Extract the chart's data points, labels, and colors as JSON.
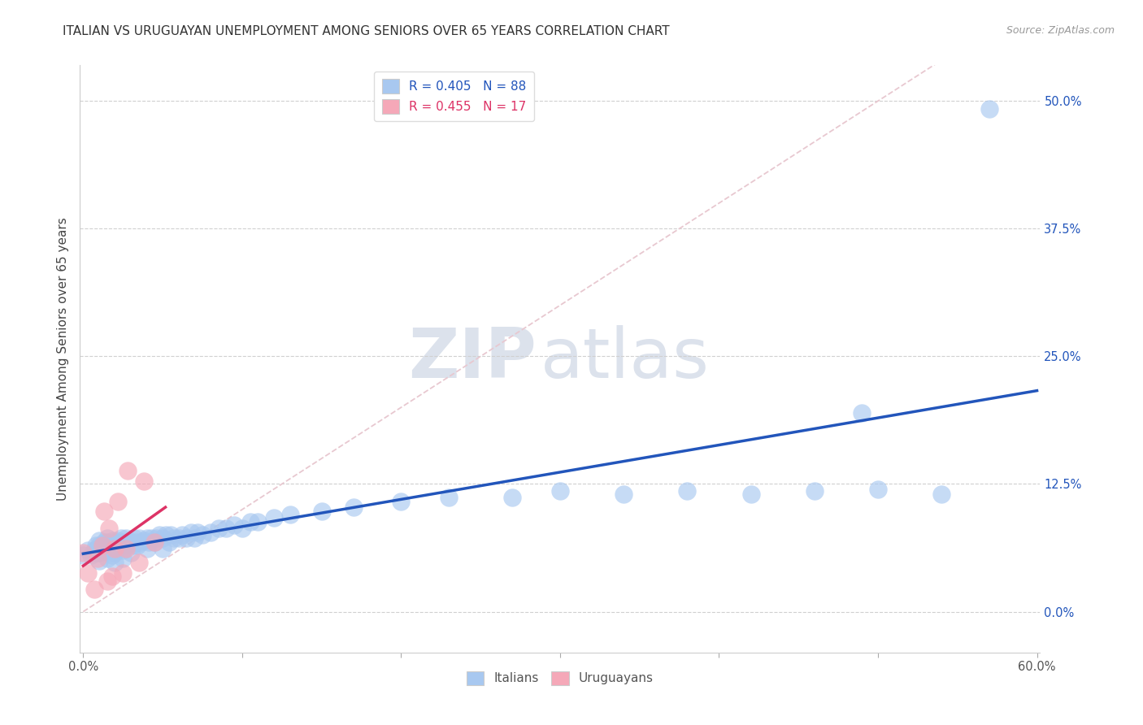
{
  "title": "ITALIAN VS URUGUAYAN UNEMPLOYMENT AMONG SENIORS OVER 65 YEARS CORRELATION CHART",
  "source": "Source: ZipAtlas.com",
  "ylabel": "Unemployment Among Seniors over 65 years",
  "xlim": [
    -0.002,
    0.602
  ],
  "ylim": [
    -0.04,
    0.535
  ],
  "xticks": [
    0.0,
    0.1,
    0.2,
    0.3,
    0.4,
    0.5,
    0.6
  ],
  "xticklabels": [
    "0.0%",
    "",
    "",
    "",
    "",
    "",
    "60.0%"
  ],
  "yticks": [
    0.0,
    0.125,
    0.25,
    0.375,
    0.5
  ],
  "yticklabels": [
    "0.0%",
    "12.5%",
    "25.0%",
    "37.5%",
    "50.0%"
  ],
  "italian_R": "0.405",
  "italian_N": "88",
  "uruguayan_R": "0.455",
  "uruguayan_N": "17",
  "italian_color": "#a8c8f0",
  "italian_line_color": "#2255bb",
  "uruguayan_color": "#f5a8b8",
  "uruguayan_line_color": "#dd3366",
  "ref_line_color": "#e8c8d0",
  "background_color": "#ffffff",
  "watermark_color": "#dce2ec",
  "italian_x": [
    0.0,
    0.003,
    0.005,
    0.007,
    0.008,
    0.008,
    0.009,
    0.01,
    0.01,
    0.01,
    0.01,
    0.012,
    0.013,
    0.014,
    0.015,
    0.015,
    0.015,
    0.015,
    0.016,
    0.017,
    0.018,
    0.018,
    0.019,
    0.02,
    0.02,
    0.02,
    0.021,
    0.022,
    0.023,
    0.024,
    0.025,
    0.025,
    0.025,
    0.026,
    0.027,
    0.028,
    0.03,
    0.03,
    0.031,
    0.032,
    0.033,
    0.034,
    0.035,
    0.036,
    0.038,
    0.04,
    0.04,
    0.041,
    0.043,
    0.045,
    0.046,
    0.048,
    0.05,
    0.05,
    0.052,
    0.054,
    0.055,
    0.057,
    0.06,
    0.062,
    0.065,
    0.068,
    0.07,
    0.072,
    0.075,
    0.08,
    0.085,
    0.09,
    0.095,
    0.1,
    0.105,
    0.11,
    0.12,
    0.13,
    0.15,
    0.17,
    0.2,
    0.23,
    0.27,
    0.3,
    0.34,
    0.38,
    0.42,
    0.46,
    0.5,
    0.54,
    0.49,
    0.57
  ],
  "italian_y": [
    0.055,
    0.06,
    0.055,
    0.06,
    0.065,
    0.058,
    0.062,
    0.05,
    0.058,
    0.065,
    0.07,
    0.062,
    0.068,
    0.06,
    0.052,
    0.06,
    0.068,
    0.072,
    0.065,
    0.06,
    0.055,
    0.065,
    0.07,
    0.048,
    0.058,
    0.068,
    0.062,
    0.07,
    0.065,
    0.072,
    0.052,
    0.06,
    0.068,
    0.065,
    0.072,
    0.068,
    0.058,
    0.068,
    0.065,
    0.072,
    0.068,
    0.065,
    0.072,
    0.068,
    0.07,
    0.062,
    0.072,
    0.068,
    0.072,
    0.068,
    0.072,
    0.075,
    0.062,
    0.072,
    0.075,
    0.068,
    0.075,
    0.072,
    0.072,
    0.075,
    0.072,
    0.078,
    0.072,
    0.078,
    0.075,
    0.078,
    0.082,
    0.082,
    0.085,
    0.082,
    0.088,
    0.088,
    0.092,
    0.095,
    0.098,
    0.102,
    0.108,
    0.112,
    0.112,
    0.118,
    0.115,
    0.118,
    0.115,
    0.118,
    0.12,
    0.115,
    0.195,
    0.492
  ],
  "uruguayan_x": [
    0.0,
    0.003,
    0.007,
    0.009,
    0.012,
    0.013,
    0.015,
    0.016,
    0.018,
    0.02,
    0.022,
    0.025,
    0.027,
    0.028,
    0.035,
    0.038,
    0.045
  ],
  "uruguayan_y": [
    0.058,
    0.038,
    0.022,
    0.052,
    0.065,
    0.098,
    0.03,
    0.082,
    0.035,
    0.062,
    0.108,
    0.038,
    0.062,
    0.138,
    0.048,
    0.128,
    0.068
  ]
}
